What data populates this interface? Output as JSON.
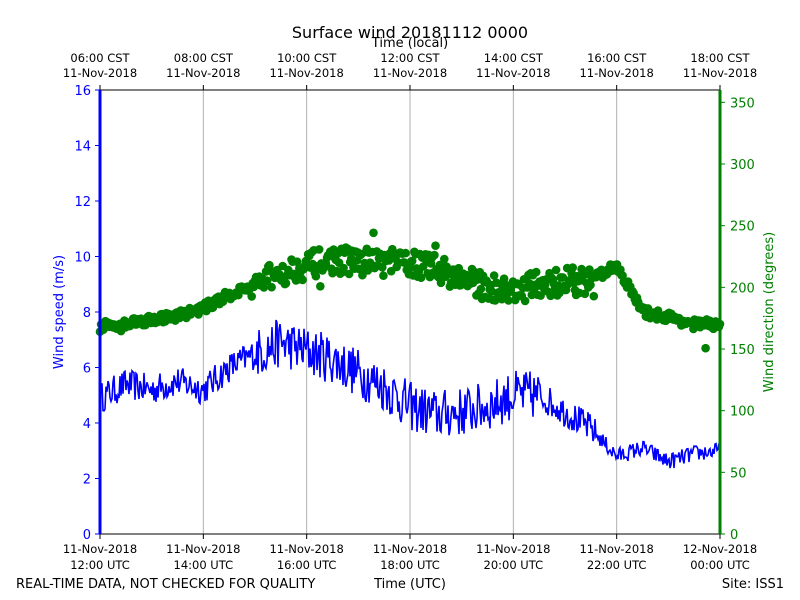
{
  "chart_data": {
    "type": "line+scatter",
    "title": "Surface wind 20181112 0000",
    "top_axis_label": "Time (local)",
    "xlabel": "Time (UTC)",
    "ylabel_left": "Wind speed (m/s)",
    "ylabel_right": "Wind direction (degrees)",
    "ylim_left": [
      0,
      16
    ],
    "ylim_right": [
      0,
      360
    ],
    "xlim_hours_utc": [
      12,
      24
    ],
    "left_ticks": [
      "0",
      "2",
      "4",
      "6",
      "8",
      "10",
      "12",
      "14",
      "16"
    ],
    "right_ticks": [
      "0",
      "50",
      "100",
      "150",
      "200",
      "250",
      "300",
      "350"
    ],
    "bottom_ticks": [
      {
        "hour": 12,
        "line1": "11-Nov-2018",
        "line2": "12:00 UTC"
      },
      {
        "hour": 14,
        "line1": "11-Nov-2018",
        "line2": "14:00 UTC"
      },
      {
        "hour": 16,
        "line1": "11-Nov-2018",
        "line2": "16:00 UTC"
      },
      {
        "hour": 18,
        "line1": "11-Nov-2018",
        "line2": "18:00 UTC"
      },
      {
        "hour": 20,
        "line1": "11-Nov-2018",
        "line2": "20:00 UTC"
      },
      {
        "hour": 22,
        "line1": "11-Nov-2018",
        "line2": "22:00 UTC"
      },
      {
        "hour": 24,
        "line1": "12-Nov-2018",
        "line2": "00:00 UTC"
      }
    ],
    "top_ticks": [
      {
        "hour": 12,
        "line1": "06:00 CST",
        "line2": "11-Nov-2018"
      },
      {
        "hour": 14,
        "line1": "08:00 CST",
        "line2": "11-Nov-2018"
      },
      {
        "hour": 16,
        "line1": "10:00 CST",
        "line2": "11-Nov-2018"
      },
      {
        "hour": 18,
        "line1": "12:00 CST",
        "line2": "11-Nov-2018"
      },
      {
        "hour": 20,
        "line1": "14:00 CST",
        "line2": "11-Nov-2018"
      },
      {
        "hour": 22,
        "line1": "16:00 CST",
        "line2": "11-Nov-2018"
      },
      {
        "hour": 24,
        "line1": "18:00 CST",
        "line2": "11-Nov-2018"
      }
    ],
    "series": [
      {
        "name": "Wind speed",
        "axis": "left",
        "style": "line",
        "color": "#0000ff",
        "x_hours_utc": [
          12.0,
          12.5,
          13.0,
          13.5,
          14.0,
          14.5,
          15.0,
          15.5,
          16.0,
          16.5,
          17.0,
          17.5,
          18.0,
          18.5,
          19.0,
          19.5,
          20.0,
          20.5,
          21.0,
          21.5,
          22.0,
          22.5,
          23.0,
          23.5,
          24.0
        ],
        "values": [
          4.9,
          5.4,
          5.2,
          5.5,
          5.2,
          6.0,
          6.5,
          6.9,
          6.6,
          6.3,
          5.8,
          5.3,
          4.6,
          4.3,
          4.4,
          4.6,
          5.0,
          5.0,
          4.4,
          3.8,
          2.8,
          3.1,
          2.6,
          2.9,
          3.0
        ]
      },
      {
        "name": "Wind direction",
        "axis": "right",
        "style": "scatter",
        "color": "#008000",
        "x_hours_utc": [
          12.0,
          12.5,
          13.0,
          13.5,
          14.0,
          14.5,
          15.0,
          15.5,
          16.0,
          16.5,
          17.0,
          17.5,
          18.0,
          18.5,
          19.0,
          19.5,
          20.0,
          20.5,
          21.0,
          21.5,
          22.0,
          22.5,
          23.0,
          23.5,
          24.0
        ],
        "values": [
          168,
          171,
          174,
          177,
          183,
          194,
          202,
          212,
          218,
          222,
          221,
          220,
          220,
          215,
          207,
          200,
          197,
          203,
          205,
          205,
          218,
          180,
          176,
          170,
          170
        ]
      }
    ]
  },
  "footer": {
    "left": "REAL-TIME DATA, NOT CHECKED FOR QUALITY",
    "center": "Time (UTC)",
    "right": "Site: ISS1"
  }
}
